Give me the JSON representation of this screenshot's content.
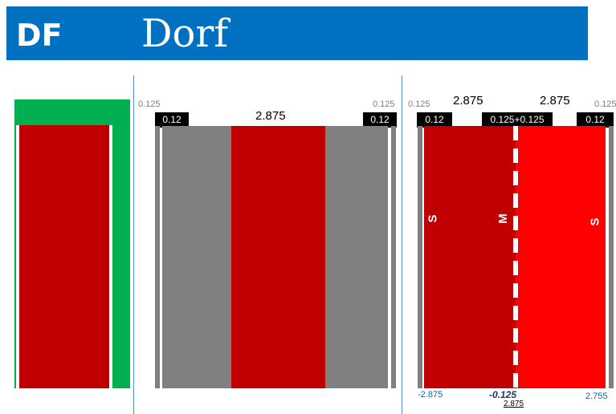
{
  "header": {
    "code": "DF",
    "title": "Dorf"
  },
  "colors": {
    "header_bg": "#0070c0",
    "green": "#00b050",
    "dark_red": "#c00000",
    "red": "#ff0000",
    "gray": "#808080",
    "black": "#000000",
    "divider": "#5b8fc9"
  },
  "panel_middle": {
    "tag_left": "0.12",
    "tag_right": "0.12",
    "offset_left": "0.125",
    "offset_right": "0.125",
    "lane_width": "2.875"
  },
  "panel_right": {
    "offset_left": "0.125",
    "offset_right": "0.125",
    "width_left": "2.875",
    "width_right": "2.875",
    "tag_left": "0.12",
    "tag_center": "0.125+0.125",
    "tag_right": "0.12",
    "lane_left_letter": "S",
    "center_letter": "M",
    "lane_right_letter": "S",
    "bottom_left": "-2.875",
    "bottom_center": "-0.125",
    "bottom_center_sub": "2.875",
    "bottom_right": "2.755"
  }
}
